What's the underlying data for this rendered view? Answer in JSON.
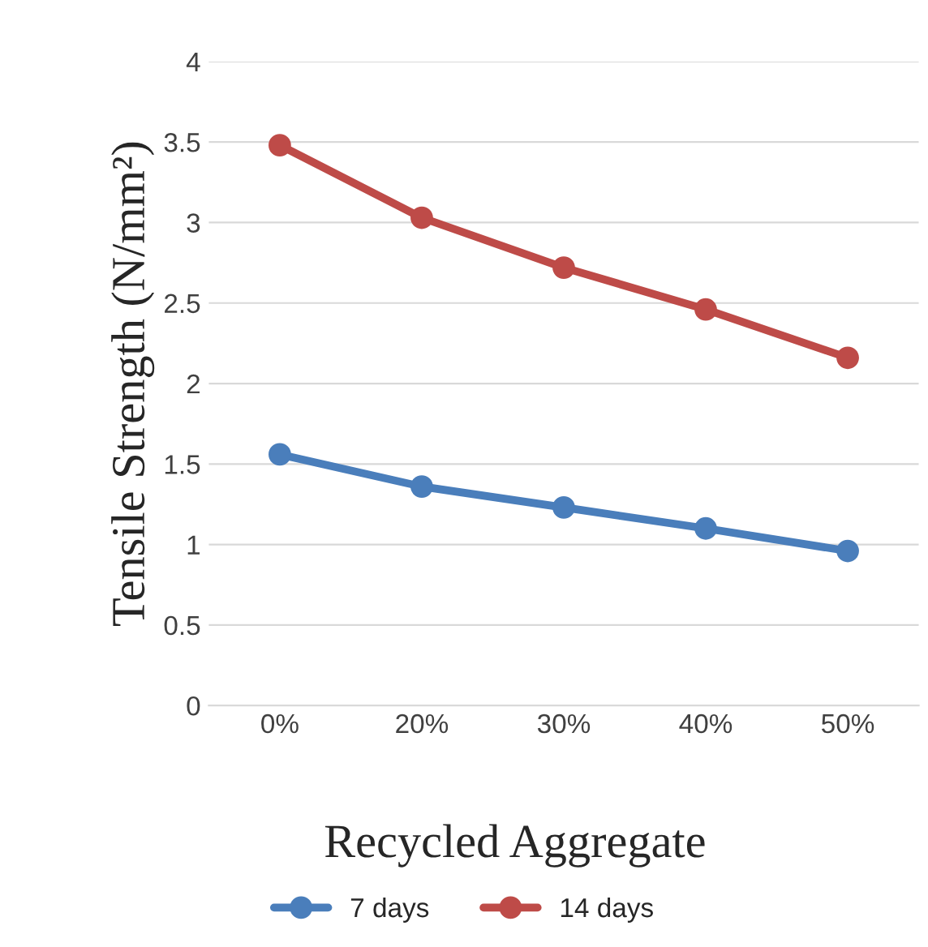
{
  "chart_data": {
    "type": "line",
    "xlabel": "Recycled Aggregate",
    "ylabel": "Tensile Strength (N/mm²)",
    "categories": [
      "0%",
      "20%",
      "30%",
      "40%",
      "50%"
    ],
    "series": [
      {
        "name": "7 days",
        "color": "#4a7ebb",
        "values": [
          1.56,
          1.36,
          1.23,
          1.1,
          0.96
        ]
      },
      {
        "name": "14 days",
        "color": "#be4b48",
        "values": [
          3.48,
          3.03,
          2.72,
          2.46,
          2.16
        ]
      }
    ],
    "ylim": [
      0,
      4
    ],
    "yticks": [
      0,
      0.5,
      1,
      1.5,
      2,
      2.5,
      3,
      3.5,
      4
    ],
    "grid": "y",
    "legend": "bottom",
    "marker": "circle",
    "line_style": "solid"
  }
}
